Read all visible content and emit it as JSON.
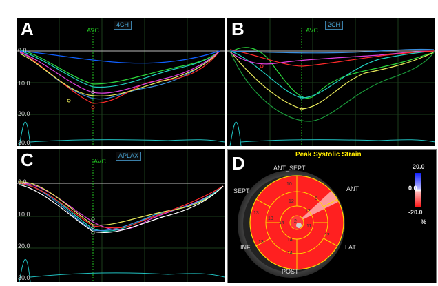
{
  "panels": {
    "a": {
      "letter": "A",
      "view": "4CH",
      "avc": "AVC"
    },
    "b": {
      "letter": "B",
      "view": "2CH",
      "avc": "AVC"
    },
    "c": {
      "letter": "C",
      "view": "APLAX",
      "avc": "AVC"
    },
    "d": {
      "letter": "D"
    }
  },
  "strain_axis": [
    "0.0",
    "10.0",
    "20.0",
    "30.0"
  ],
  "bullseye": {
    "title": "Peak Systolic Strain",
    "labels": {
      "ant_sept": "ANT_SEPT",
      "ant": "ANT",
      "lat": "LAT",
      "post": "POST",
      "inf": "INF",
      "sept": "SEPT"
    },
    "scale": {
      "max": "20.0",
      "zero": "0.0",
      "min": "-20.0",
      "unit": "%"
    },
    "segment_values": {
      "outer_top": "10",
      "outer_right": "5",
      "outer_left": "13",
      "outer_bottom": "14",
      "outer_bottom_left": "13",
      "outer_bottom_right": "12",
      "mid_top": "12",
      "mid_left": "13",
      "mid_right": "12",
      "mid_bottom": "14",
      "inner_left": "14",
      "inner_right": "11",
      "center": "2"
    }
  },
  "colors": {
    "panel_bg": "#000000",
    "grid": "#1f4a1f",
    "avc": "#22c322",
    "tag_border": "#3b7fa8",
    "title": "#ffea00",
    "segment": "#ff1a1a",
    "outline": "#ffd700"
  }
}
